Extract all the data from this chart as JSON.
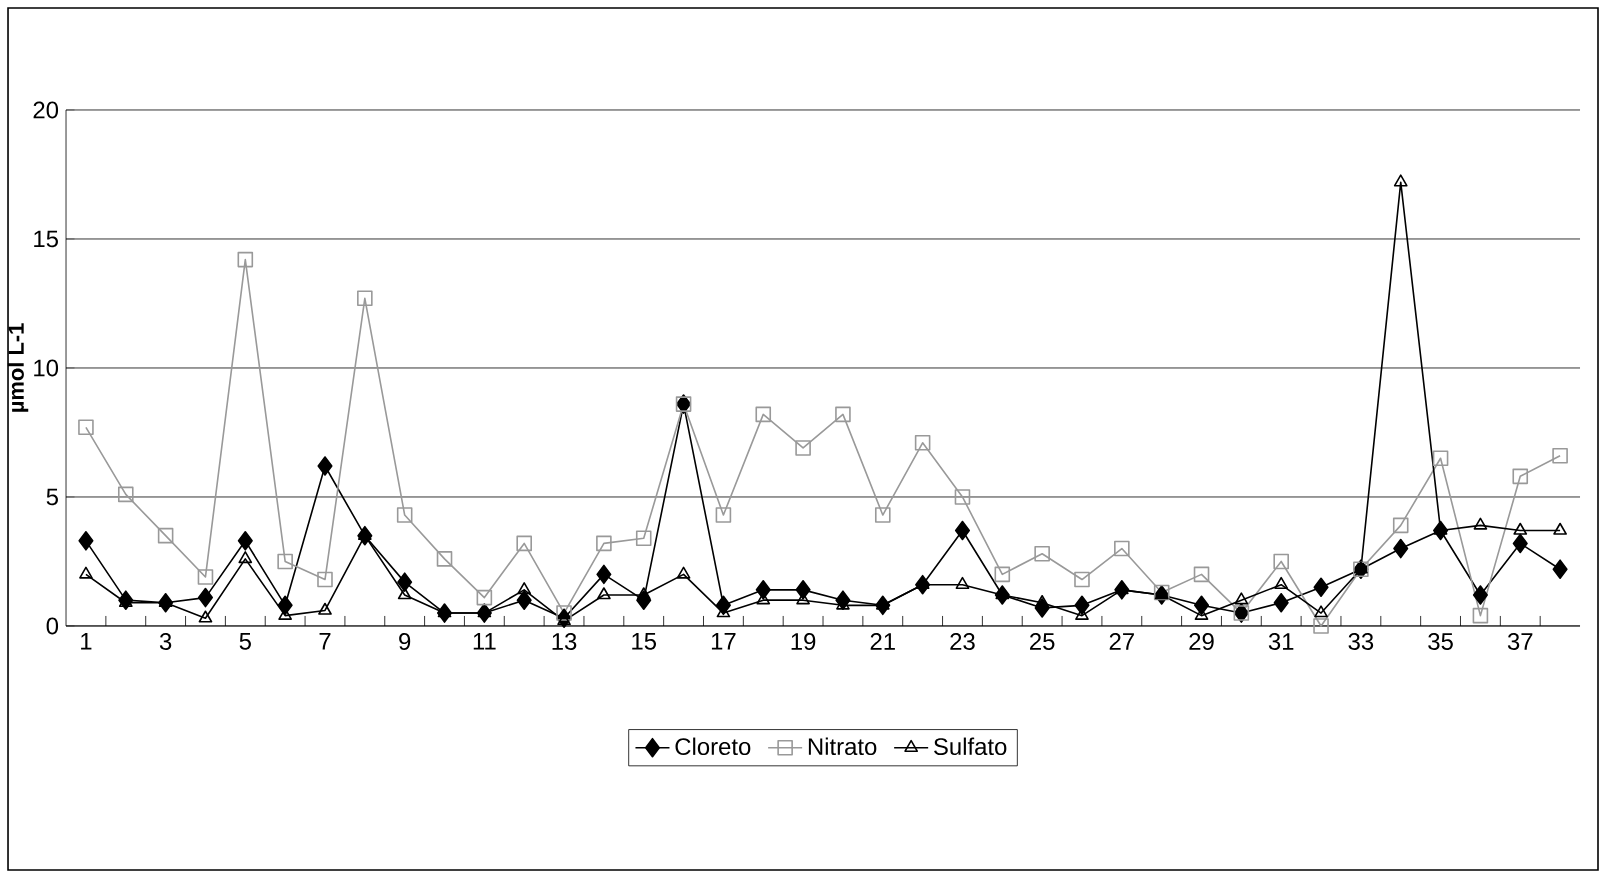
{
  "chart_data": {
    "type": "line",
    "ylabel": "µmol L-1",
    "categories": [
      "1",
      null,
      "3",
      null,
      "5",
      null,
      "7",
      null,
      "9",
      null,
      "11",
      null,
      "13",
      null,
      "15",
      null,
      "17",
      null,
      "19",
      null,
      "21",
      null,
      "23",
      null,
      "25",
      null,
      "27",
      null,
      "29",
      null,
      "31",
      null,
      "33",
      null,
      "35",
      null,
      "37",
      null
    ],
    "series": [
      {
        "name": "Cloreto",
        "color": "#000000",
        "marker": "diamond",
        "values": [
          3.3,
          1.0,
          0.9,
          1.1,
          3.3,
          0.8,
          6.2,
          3.5,
          1.7,
          0.5,
          0.5,
          1.0,
          0.3,
          2.0,
          1.0,
          8.6,
          0.8,
          1.4,
          1.4,
          1.0,
          0.8,
          1.6,
          3.7,
          1.2,
          0.7,
          0.8,
          1.4,
          1.2,
          0.8,
          0.5,
          0.9,
          1.5,
          2.2,
          3.0,
          3.7,
          1.2,
          3.2,
          2.2
        ]
      },
      {
        "name": "Nitrato",
        "color": "#999999",
        "marker": "square",
        "values": [
          7.7,
          5.1,
          3.5,
          1.9,
          14.2,
          2.5,
          1.8,
          12.7,
          4.3,
          2.6,
          1.1,
          3.2,
          0.5,
          3.2,
          3.4,
          8.6,
          4.3,
          8.2,
          6.9,
          8.2,
          4.3,
          7.1,
          5.0,
          2.0,
          2.8,
          1.8,
          3.0,
          1.3,
          2.0,
          0.5,
          2.5,
          0.0,
          2.2,
          3.9,
          6.5,
          0.4,
          5.8,
          6.6
        ]
      },
      {
        "name": "Sulfato",
        "color": "#000000",
        "marker": "triangle",
        "values": [
          2.0,
          0.9,
          0.9,
          0.3,
          2.6,
          0.4,
          0.6,
          3.5,
          1.2,
          0.5,
          0.5,
          1.4,
          0.2,
          1.2,
          1.2,
          2.0,
          0.5,
          1.0,
          1.0,
          0.8,
          0.8,
          1.6,
          1.6,
          1.2,
          0.9,
          0.4,
          1.4,
          1.2,
          0.4,
          1.0,
          1.6,
          0.5,
          2.2,
          17.2,
          3.7,
          3.9,
          3.7,
          3.7
        ]
      }
    ],
    "ylim": [
      0,
      20
    ],
    "yticks": [
      0,
      5,
      10,
      15,
      20
    ],
    "grid": "y",
    "legend": "bottom"
  }
}
